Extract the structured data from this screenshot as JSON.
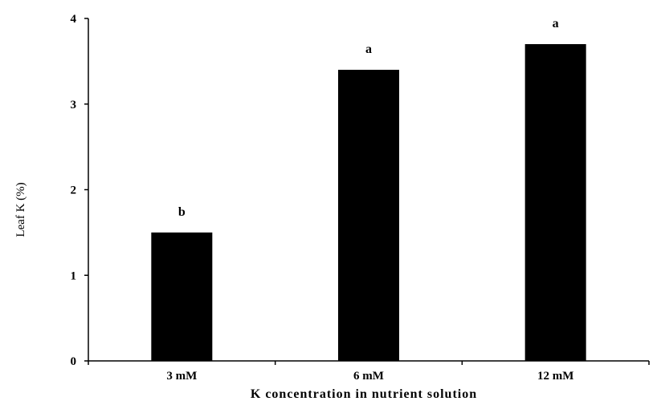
{
  "chart_data": {
    "type": "bar",
    "title": "",
    "xlabel": "K concentration in nutrient solution",
    "ylabel": "Leaf K (%)",
    "categories": [
      "3 mM",
      "6 mM",
      "12 mM"
    ],
    "values": [
      1.5,
      3.4,
      3.7
    ],
    "significance_labels": [
      "b",
      "a",
      "a"
    ],
    "ylim": [
      0,
      4
    ],
    "yticks": [
      0,
      1,
      2,
      3,
      4
    ],
    "ytick_labels": [
      "0",
      "1",
      "2",
      "3",
      "4"
    ],
    "grid": false,
    "legend": "none",
    "bar_color": "#000000",
    "axis_color": "#000000"
  }
}
